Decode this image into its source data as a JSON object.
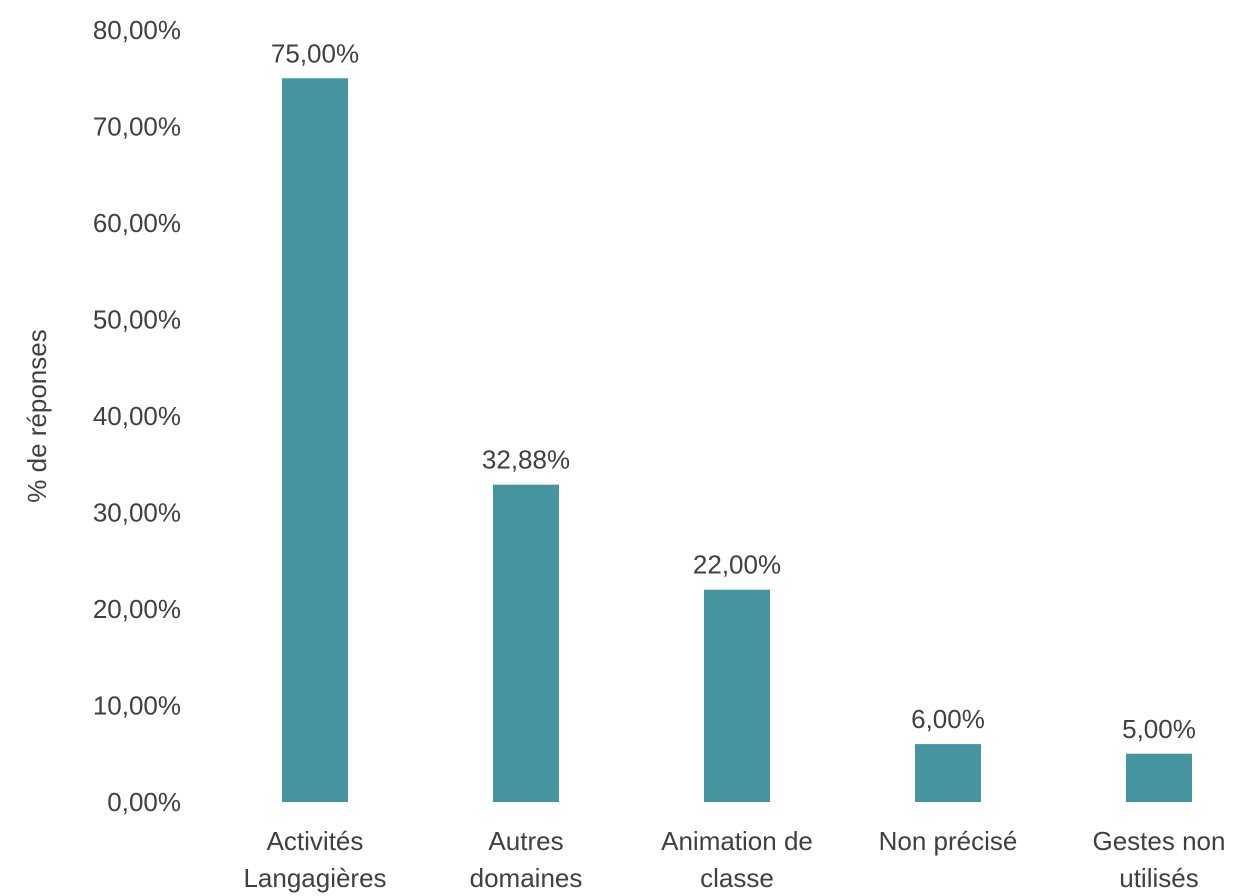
{
  "chart_data": {
    "type": "bar",
    "title": "",
    "xlabel": "",
    "ylabel": "% de réponses",
    "ylim": [
      0,
      80
    ],
    "yticks": [
      "0,00%",
      "10,00%",
      "20,00%",
      "30,00%",
      "40,00%",
      "50,00%",
      "60,00%",
      "70,00%",
      "80,00%"
    ],
    "grid": false,
    "legend": "none",
    "bar_color": "#4495a0",
    "categories": [
      [
        "Activités",
        "Langagières"
      ],
      [
        "Autres",
        "domaines"
      ],
      [
        "Animation de",
        "classe"
      ],
      [
        "Non précisé"
      ],
      [
        "Gestes non",
        "utilisés"
      ]
    ],
    "values": [
      75.0,
      32.88,
      22.0,
      6.0,
      5.0
    ],
    "value_labels": [
      "75,00%",
      "32,88%",
      "22,00%",
      "6,00%",
      "5,00%"
    ]
  }
}
